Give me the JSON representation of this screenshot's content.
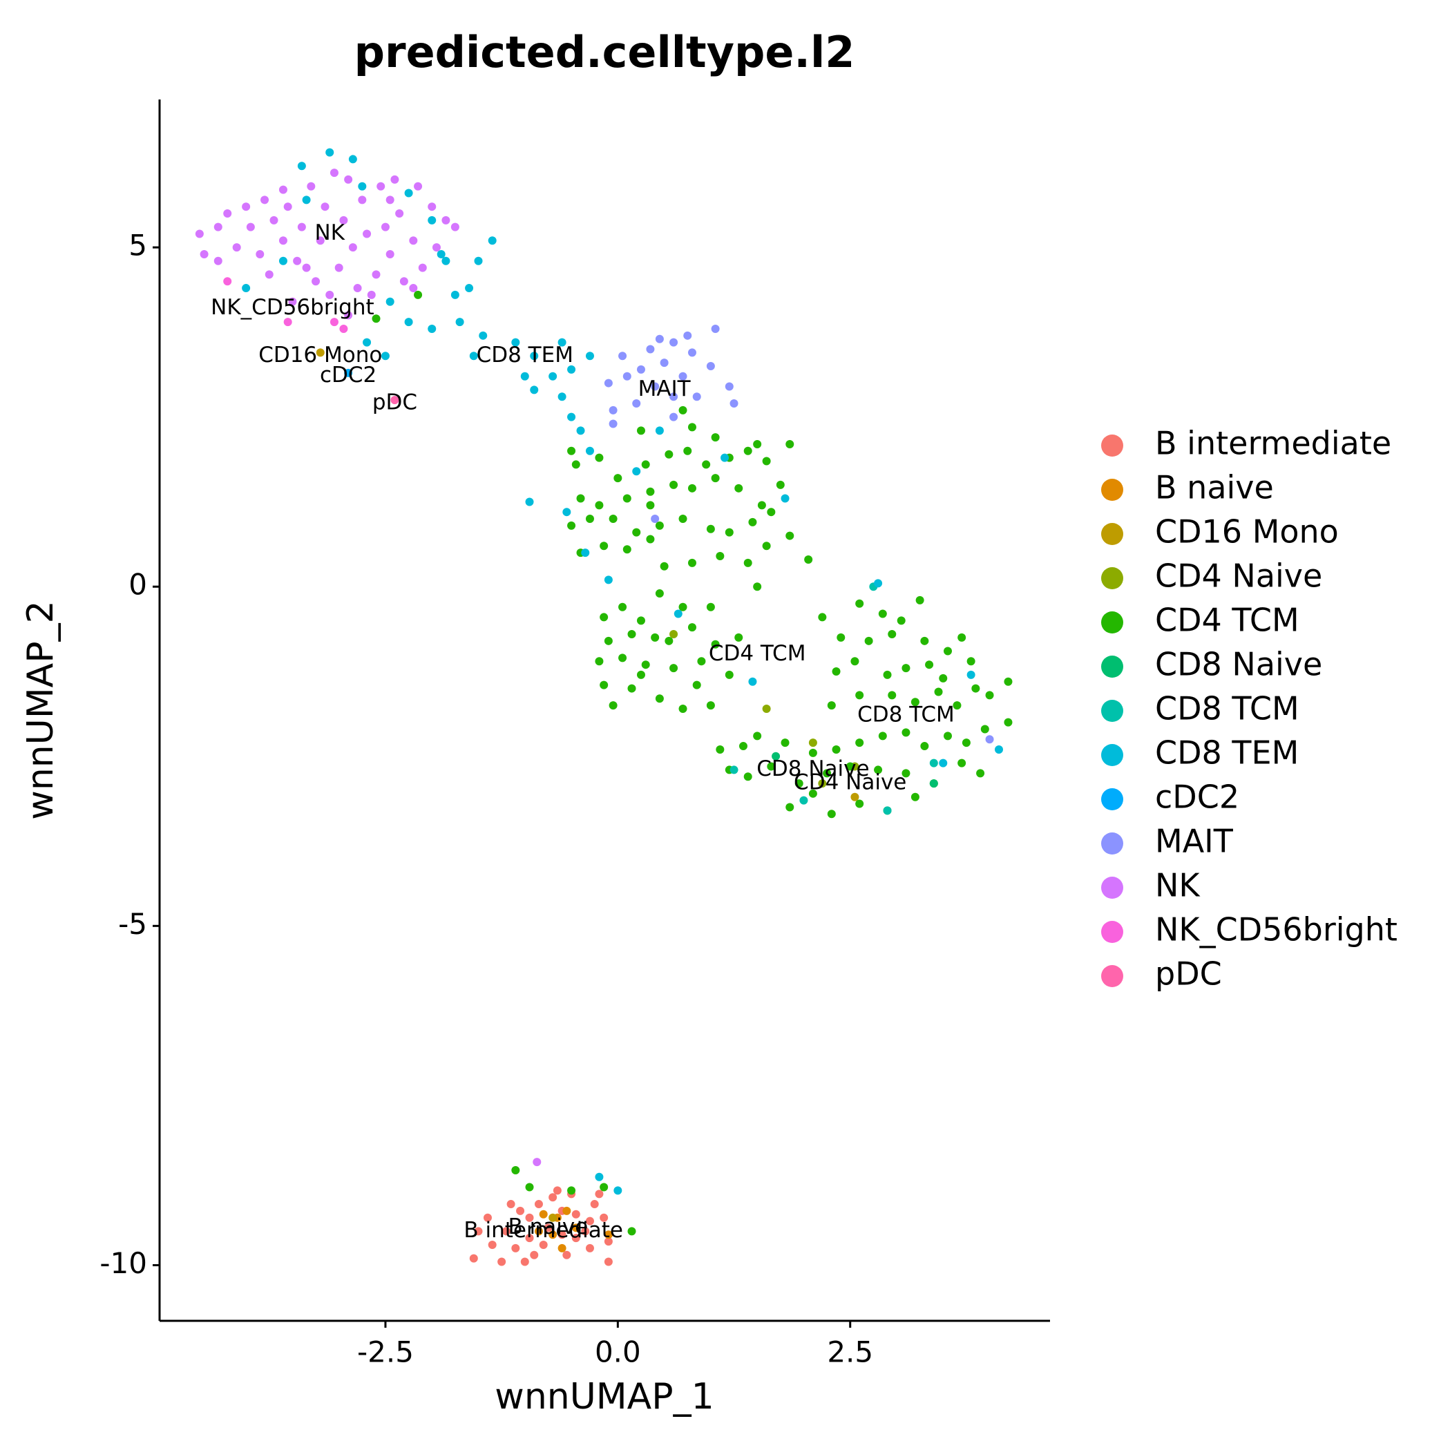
{
  "chart_data": {
    "type": "scatter",
    "title": "predicted.celltype.l2",
    "x_label": "wnnUMAP_1",
    "y_label": "wnnUMAP_2",
    "xlim": [
      -4.93,
      4.65
    ],
    "ylim": [
      -10.82,
      7.18
    ],
    "xticks": [
      -2.5,
      {
        "value": 0,
        "label": "0.0"
      },
      2.5
    ],
    "yticks": [
      -10,
      -5,
      0,
      5
    ],
    "grid": false,
    "legend": "right",
    "series": [
      {
        "name": "B intermediate",
        "color": "#F8766D",
        "x": [
          -1.5,
          -1.35,
          -1.55,
          -1.25,
          -1.1,
          -1.2,
          -0.95,
          -0.85,
          -0.7,
          -0.6,
          -0.45,
          -0.3,
          -0.15,
          -0.1,
          -0.1,
          -0.3,
          -0.45,
          -0.6,
          -0.8,
          -0.95,
          -1.0,
          -0.55,
          -0.25,
          -0.75,
          -1.05,
          -1.4,
          -0.35,
          -0.65,
          -0.9,
          -1.15,
          -0.2,
          -0.5
        ],
        "y": [
          -9.5,
          -9.7,
          -9.9,
          -9.95,
          -9.75,
          -9.5,
          -9.3,
          -9.1,
          -9.0,
          -9.2,
          -9.25,
          -9.35,
          -9.3,
          -9.65,
          -9.95,
          -9.75,
          -9.6,
          -9.55,
          -9.7,
          -9.6,
          -9.95,
          -9.85,
          -9.1,
          -9.45,
          -9.2,
          -9.3,
          -9.5,
          -8.9,
          -9.85,
          -9.1,
          -8.95,
          -8.95
        ]
      },
      {
        "name": "B naive",
        "color": "#E18A00",
        "x": [
          -0.85,
          -0.65,
          -0.7,
          -0.45,
          -0.6,
          -0.1,
          -0.8,
          -0.55
        ],
        "y": [
          -9.5,
          -9.3,
          -9.55,
          -9.45,
          -9.75,
          -9.55,
          -9.25,
          -9.2
        ]
      },
      {
        "name": "CD16 Mono",
        "color": "#BE9C00",
        "x": [
          -3.2,
          2.55,
          -0.7
        ],
        "y": [
          3.45,
          -3.1,
          -9.3
        ]
      },
      {
        "name": "CD4 Naive",
        "color": "#8CAB00",
        "x": [
          0.6,
          1.6,
          2.1,
          2.55,
          2.2
        ],
        "y": [
          -0.7,
          -1.8,
          -2.3,
          -2.65,
          -2.9
        ]
      },
      {
        "name": "CD4 TCM",
        "color": "#24B700",
        "x": [
          -0.45,
          -0.2,
          0.0,
          0.3,
          0.55,
          0.75,
          0.95,
          1.2,
          1.4,
          1.6,
          1.85,
          -0.4,
          -0.2,
          0.1,
          0.35,
          0.6,
          0.8,
          1.05,
          1.3,
          1.55,
          1.75,
          -0.5,
          -0.3,
          -0.05,
          0.2,
          0.45,
          0.7,
          1.0,
          1.2,
          1.45,
          1.65,
          -0.4,
          -0.15,
          0.1,
          0.35,
          0.8,
          1.1,
          1.4,
          1.6,
          2.05,
          1.5,
          0.5,
          0.7,
          0.25,
          0.8,
          1.05,
          -0.5,
          1.5,
          0.35,
          1.85,
          -0.15,
          0.05,
          0.25,
          0.45,
          0.7,
          1.0,
          -0.1,
          0.15,
          0.4,
          0.55,
          0.8,
          1.05,
          1.3,
          -0.2,
          0.05,
          0.3,
          0.6,
          0.9,
          1.2,
          -0.15,
          0.15,
          0.45,
          0.7,
          1.0,
          0.25,
          -0.05,
          0.85,
          2.2,
          2.6,
          2.85,
          3.05,
          3.25,
          2.4,
          2.7,
          2.95,
          3.3,
          3.55,
          3.7,
          2.35,
          2.55,
          2.9,
          3.1,
          3.35,
          3.5,
          3.8,
          2.3,
          2.6,
          2.95,
          3.2,
          3.45,
          3.65,
          3.85,
          4.0,
          4.2,
          1.1,
          1.35,
          1.5,
          1.8,
          2.1,
          2.35,
          2.6,
          2.85,
          3.1,
          3.3,
          3.55,
          3.75,
          3.95,
          4.2,
          1.2,
          1.4,
          1.65,
          1.95,
          2.25,
          2.5,
          2.8,
          3.1,
          3.4,
          3.7,
          3.9,
          1.85,
          2.1,
          2.3,
          2.6,
          2.9,
          3.2,
          -1.1,
          -0.95,
          -0.5,
          -0.15,
          0.15,
          -2.6,
          -2.15
        ],
        "y": [
          1.8,
          1.9,
          1.6,
          1.8,
          1.95,
          2.0,
          1.8,
          1.9,
          2.0,
          1.85,
          2.1,
          1.3,
          1.2,
          1.3,
          1.4,
          1.5,
          1.45,
          1.6,
          1.45,
          1.2,
          1.5,
          0.9,
          1.0,
          1.0,
          0.8,
          0.9,
          1.0,
          0.85,
          0.8,
          0.95,
          1.1,
          0.5,
          0.6,
          0.55,
          0.7,
          0.35,
          0.45,
          0.35,
          0.6,
          0.4,
          0.0,
          0.3,
          2.6,
          2.3,
          2.35,
          2.2,
          2.0,
          2.1,
          1.2,
          0.75,
          -0.45,
          -0.3,
          -0.5,
          -0.1,
          -0.3,
          -0.3,
          -0.8,
          -0.7,
          -0.75,
          -0.8,
          -0.6,
          -0.85,
          -0.75,
          -1.1,
          -1.05,
          -1.15,
          -1.2,
          -1.1,
          -1.3,
          -1.45,
          -1.5,
          -1.65,
          -1.8,
          -1.75,
          -1.3,
          -1.75,
          -1.45,
          -0.45,
          -0.25,
          -0.4,
          -0.5,
          -0.2,
          -0.75,
          -0.8,
          -0.7,
          -0.8,
          -0.95,
          -0.75,
          -1.25,
          -1.1,
          -1.3,
          -1.2,
          -1.15,
          -1.35,
          -1.1,
          -1.75,
          -1.6,
          -1.6,
          -1.7,
          -1.55,
          -1.75,
          -1.5,
          -1.6,
          -1.4,
          -2.4,
          -2.35,
          -2.2,
          -2.3,
          -2.45,
          -2.4,
          -2.3,
          -2.2,
          -2.15,
          -2.35,
          -2.2,
          -2.3,
          -2.1,
          -2.0,
          -2.7,
          -2.8,
          -2.65,
          -2.9,
          -2.75,
          -2.65,
          -2.7,
          -2.75,
          -2.9,
          -2.6,
          -2.75,
          -3.25,
          -3.05,
          -3.35,
          -3.2,
          -3.3,
          -3.1,
          -8.6,
          -8.85,
          -8.9,
          -8.85,
          -9.5,
          3.95,
          4.3
        ]
      },
      {
        "name": "CD8 Naive",
        "color": "#00BE70",
        "x": [
          1.7,
          3.4
        ],
        "y": [
          -2.5,
          -2.9
        ]
      },
      {
        "name": "CD8 TCM",
        "color": "#00C1AB",
        "x": [
          2.75,
          3.4,
          2.0,
          1.25,
          2.9
        ],
        "y": [
          0.0,
          -2.6,
          -3.15,
          -2.7,
          -3.3
        ]
      },
      {
        "name": "CD8 TEM",
        "color": "#00BBDA",
        "x": [
          -3.4,
          -3.1,
          -2.85,
          -2.75,
          -3.35,
          -2.25,
          -2.0,
          -1.9,
          -1.85,
          -1.35,
          -1.5,
          -1.6,
          -1.75,
          -2.45,
          -2.25,
          -2.0,
          -1.7,
          -1.45,
          -1.55,
          -1.1,
          -0.9,
          -0.6,
          -1.0,
          -0.7,
          -0.5,
          -0.3,
          -0.6,
          -0.9,
          -0.5,
          -0.4,
          -0.3,
          -0.95,
          -0.55,
          -0.35,
          -0.1,
          0.2,
          0.45,
          1.15,
          1.8,
          2.8,
          3.8,
          4.1,
          3.5,
          1.45,
          0.65,
          -4.0,
          -3.6,
          -2.7,
          -2.5,
          0.0,
          -0.2
        ],
        "y": [
          6.2,
          6.4,
          6.3,
          5.9,
          5.7,
          5.8,
          5.4,
          4.9,
          4.8,
          5.1,
          4.8,
          4.4,
          4.3,
          4.2,
          3.9,
          3.8,
          3.9,
          3.7,
          3.4,
          3.6,
          3.4,
          3.6,
          3.1,
          3.1,
          3.2,
          3.4,
          2.8,
          2.9,
          2.5,
          2.3,
          2.0,
          1.25,
          1.1,
          0.5,
          0.1,
          1.7,
          2.3,
          1.9,
          1.3,
          0.05,
          -1.3,
          -2.4,
          -2.6,
          -1.4,
          -0.4,
          4.4,
          4.8,
          3.6,
          3.4,
          -8.9,
          -8.7
        ]
      },
      {
        "name": "cDC2",
        "color": "#00ACFC",
        "x": [
          -2.9
        ],
        "y": [
          3.15
        ]
      },
      {
        "name": "MAIT",
        "color": "#8B93FF",
        "x": [
          0.05,
          0.1,
          0.25,
          0.35,
          0.4,
          0.5,
          0.6,
          0.7,
          0.8,
          0.85,
          1.0,
          1.05,
          1.2,
          1.25,
          -0.05,
          0.2,
          -0.1,
          0.6,
          0.4,
          0.6,
          -0.05,
          4.0,
          0.45,
          0.75
        ],
        "y": [
          3.4,
          3.1,
          3.2,
          3.5,
          2.95,
          3.3,
          3.6,
          3.1,
          3.45,
          2.8,
          3.25,
          3.8,
          2.95,
          2.7,
          2.6,
          2.7,
          3.0,
          2.8,
          1.0,
          2.5,
          2.4,
          -2.25,
          3.65,
          3.7
        ]
      },
      {
        "name": "NK",
        "color": "#D575FE",
        "x": [
          -4.5,
          -4.45,
          -4.3,
          -4.2,
          -4.1,
          -4.0,
          -3.95,
          -3.85,
          -3.8,
          -3.7,
          -3.6,
          -3.55,
          -3.45,
          -3.4,
          -3.3,
          -3.25,
          -3.2,
          -3.15,
          -3.05,
          -3.0,
          -2.95,
          -2.9,
          -2.85,
          -2.8,
          -2.75,
          -2.7,
          -2.6,
          -2.55,
          -2.5,
          -2.45,
          -2.4,
          -2.35,
          -2.3,
          -2.2,
          -2.15,
          -2.1,
          -2.0,
          -1.95,
          -1.85,
          -1.75,
          -3.5,
          -3.1,
          -2.9,
          -4.3,
          -3.75,
          -3.35,
          -2.65,
          -2.2,
          -3.6,
          -2.45,
          -0.87
        ],
        "y": [
          5.2,
          4.9,
          5.3,
          5.5,
          5.0,
          5.6,
          5.3,
          4.9,
          5.7,
          5.4,
          5.1,
          5.6,
          4.8,
          5.3,
          5.9,
          4.5,
          5.1,
          5.6,
          6.1,
          4.7,
          5.4,
          6.0,
          5.0,
          4.4,
          5.7,
          5.2,
          4.6,
          5.9,
          5.3,
          4.9,
          6.0,
          5.5,
          4.5,
          5.1,
          5.9,
          4.7,
          5.6,
          5.0,
          5.4,
          5.3,
          4.2,
          4.3,
          4.0,
          4.8,
          4.6,
          4.7,
          4.3,
          4.4,
          5.85,
          5.7,
          -8.48
        ]
      },
      {
        "name": "NK_CD56bright",
        "color": "#F962DD",
        "x": [
          -4.2,
          -3.55,
          -3.05,
          -2.95
        ],
        "y": [
          4.5,
          3.9,
          3.9,
          3.8
        ]
      },
      {
        "name": "pDC",
        "color": "#FF65AC",
        "x": [
          -2.4
        ],
        "y": [
          2.75
        ]
      }
    ],
    "annotations": [
      {
        "text": "NK",
        "x": -3.1,
        "y": 5.2
      },
      {
        "text": "NK_CD56bright",
        "x": -3.5,
        "y": 4.1
      },
      {
        "text": "CD16 Mono",
        "x": -3.2,
        "y": 3.4
      },
      {
        "text": "cDC2",
        "x": -2.9,
        "y": 3.1
      },
      {
        "text": "pDC",
        "x": -2.4,
        "y": 2.7
      },
      {
        "text": "CD8 TEM",
        "x": -1.0,
        "y": 3.4
      },
      {
        "text": "MAIT",
        "x": 0.5,
        "y": 2.9
      },
      {
        "text": "CD4 TCM",
        "x": 1.5,
        "y": -1.0
      },
      {
        "text": "CD8 TCM",
        "x": 3.1,
        "y": -1.9
      },
      {
        "text": "CD8 Naive",
        "x": 2.1,
        "y": -2.7
      },
      {
        "text": "CD4 Naive",
        "x": 2.5,
        "y": -2.9
      },
      {
        "text": "B intermediate",
        "x": -0.8,
        "y": -9.5
      },
      {
        "text": "B naive",
        "x": -0.75,
        "y": -9.45
      }
    ]
  }
}
